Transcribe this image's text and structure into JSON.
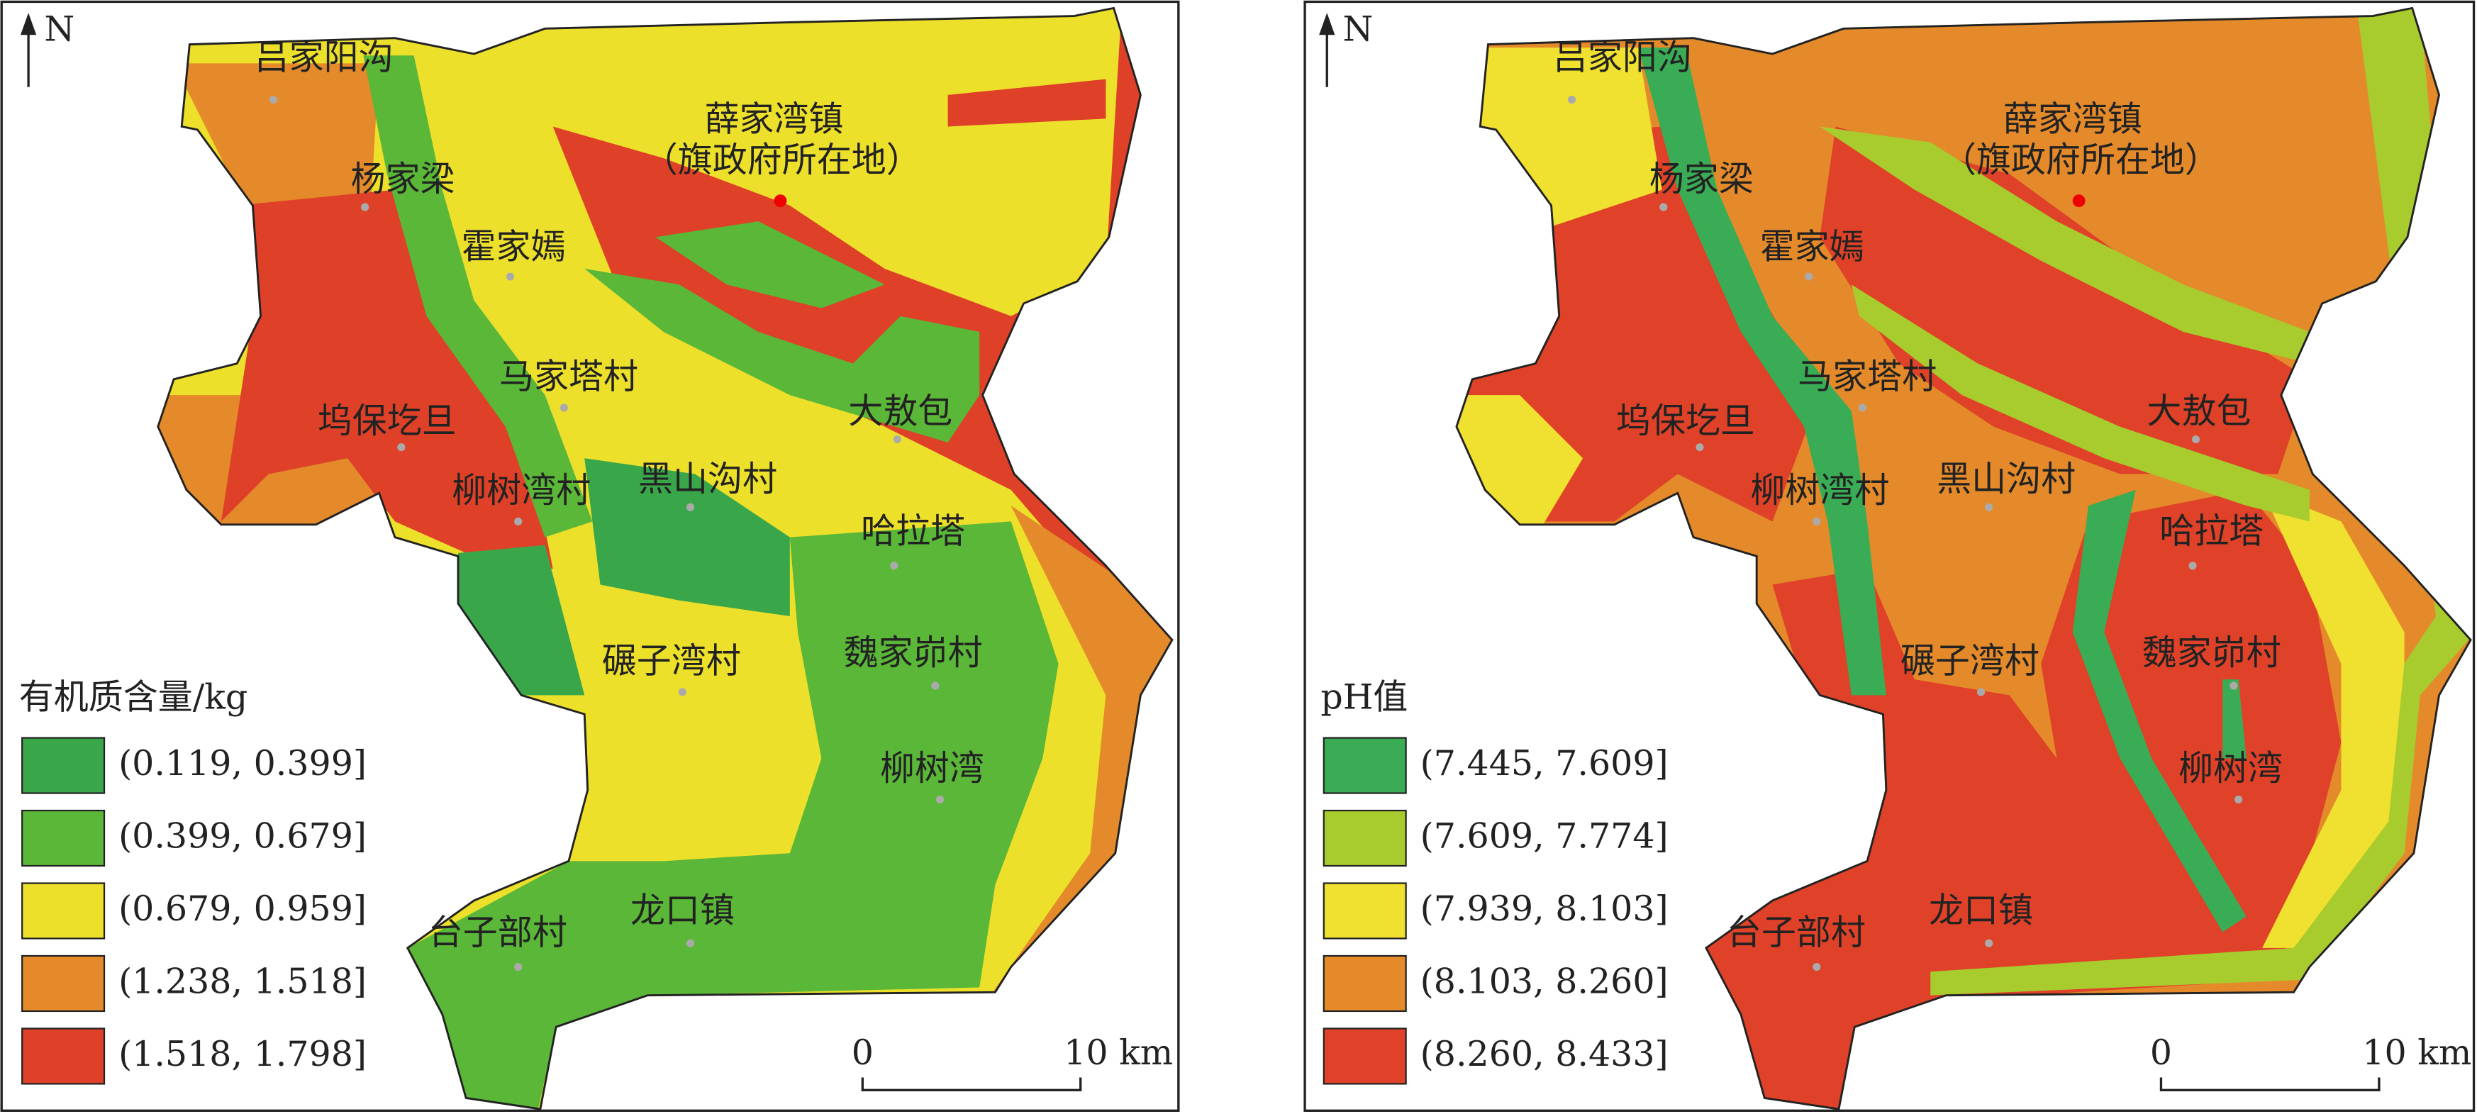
{
  "north": "N",
  "panels": [
    {
      "places": [
        "吕家阳沟",
        "杨家梁",
        "霍家嫣",
        "马家塔村",
        "大敖包",
        "坞保圪旦",
        "柳树湾村",
        "黑山沟村",
        "哈拉塔",
        "碾子湾村",
        "魏家峁村",
        "柳树湾",
        "台子部村",
        "龙口镇"
      ],
      "capital": [
        "薛家湾镇",
        "（旗政府所在地）"
      ],
      "legend": {
        "title": "有机质含量/kg",
        "items": [
          {
            "label": "(0.119, 0.399]",
            "color": "#3aa64a"
          },
          {
            "label": "(0.399, 0.679]",
            "color": "#5ab738"
          },
          {
            "label": "(0.679, 0.959]",
            "color": "#ede02b"
          },
          {
            "label": "(1.238, 1.518]",
            "color": "#e48a2a"
          },
          {
            "label": "(1.518, 1.798]",
            "color": "#de4128"
          }
        ]
      },
      "scale": [
        "0",
        "10 km"
      ]
    },
    {
      "places": [
        "吕家阳沟",
        "杨家梁",
        "霍家嫣",
        "马家塔村",
        "大敖包",
        "坞保圪旦",
        "柳树湾村",
        "黑山沟村",
        "哈拉塔",
        "碾子湾村",
        "魏家峁村",
        "柳树湾",
        "台子部村",
        "龙口镇"
      ],
      "capital": [
        "薛家湾镇",
        "（旗政府所在地）"
      ],
      "legend": {
        "title": "pH值",
        "items": [
          {
            "label": "(7.445, 7.609]",
            "color": "#3aac55"
          },
          {
            "label": "(7.609, 7.774]",
            "color": "#a8cc2e"
          },
          {
            "label": "(7.939, 8.103]",
            "color": "#f0e02f"
          },
          {
            "label": "(8.103, 8.260]",
            "color": "#e48a2a"
          },
          {
            "label": "(8.260, 8.433]",
            "color": "#df4228"
          }
        ]
      },
      "scale": [
        "0",
        "10 km"
      ]
    }
  ]
}
